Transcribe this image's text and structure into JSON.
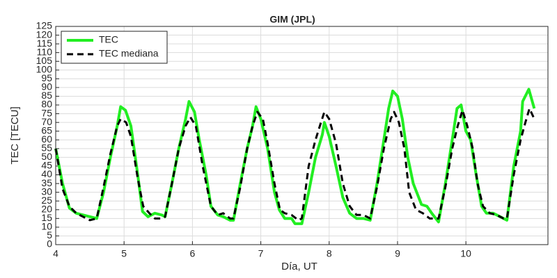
{
  "chart_data": {
    "type": "line",
    "title": "GIM (JPL)",
    "xlabel": "Día, UT",
    "ylabel": "TEC [TECU]",
    "xlim": [
      4,
      11.2
    ],
    "xticks": [
      4,
      5,
      6,
      7,
      8,
      9,
      10
    ],
    "ylim": [
      0,
      125
    ],
    "yticks": [
      0,
      5,
      10,
      15,
      20,
      25,
      30,
      35,
      40,
      45,
      50,
      55,
      60,
      65,
      70,
      75,
      80,
      85,
      90,
      95,
      100,
      105,
      110,
      115,
      120,
      125
    ],
    "grid": true,
    "legend": "upper left",
    "series": [
      {
        "name": "TEC",
        "color": "#22ee22",
        "style": "solid",
        "x": [
          4.0,
          4.1,
          4.2,
          4.3,
          4.4,
          4.5,
          4.6,
          4.7,
          4.8,
          4.9,
          4.95,
          5.02,
          5.1,
          5.2,
          5.27,
          5.35,
          5.45,
          5.55,
          5.6,
          5.7,
          5.8,
          5.9,
          5.95,
          6.03,
          6.1,
          6.2,
          6.27,
          6.37,
          6.45,
          6.55,
          6.6,
          6.7,
          6.8,
          6.88,
          6.93,
          7.0,
          7.1,
          7.2,
          7.27,
          7.35,
          7.45,
          7.5,
          7.6,
          7.7,
          7.8,
          7.9,
          7.93,
          8.0,
          8.1,
          8.2,
          8.3,
          8.4,
          8.5,
          8.6,
          8.7,
          8.8,
          8.87,
          8.93,
          9.0,
          9.07,
          9.15,
          9.23,
          9.35,
          9.43,
          9.5,
          9.6,
          9.7,
          9.8,
          9.87,
          9.93,
          10.0,
          10.07,
          10.15,
          10.23,
          10.3,
          10.4,
          10.5,
          10.6,
          10.7,
          10.8,
          10.83,
          10.92,
          11.0
        ],
        "values": [
          55,
          35,
          21,
          18,
          17,
          16,
          15,
          30,
          50,
          68,
          79,
          77,
          68,
          40,
          19,
          16,
          18,
          17,
          16,
          35,
          55,
          72,
          82,
          76,
          60,
          40,
          22,
          17,
          16,
          14,
          14,
          35,
          55,
          68,
          79,
          72,
          55,
          30,
          20,
          15,
          15,
          12,
          12,
          30,
          50,
          63,
          70,
          62,
          45,
          27,
          18,
          15,
          15,
          14,
          35,
          60,
          78,
          88,
          85,
          72,
          50,
          35,
          23,
          22,
          18,
          13,
          35,
          60,
          78,
          80,
          65,
          60,
          40,
          22,
          18,
          18,
          16,
          14,
          45,
          65,
          82,
          89,
          78
        ]
      },
      {
        "name": "TEC mediana",
        "color": "#000000",
        "style": "dashed",
        "x": [
          4.0,
          4.1,
          4.2,
          4.3,
          4.4,
          4.5,
          4.6,
          4.7,
          4.8,
          4.9,
          4.95,
          5.03,
          5.1,
          5.2,
          5.28,
          5.37,
          5.45,
          5.55,
          5.6,
          5.7,
          5.8,
          5.9,
          5.97,
          6.05,
          6.15,
          6.27,
          6.37,
          6.45,
          6.55,
          6.6,
          6.7,
          6.8,
          6.88,
          6.95,
          7.03,
          7.1,
          7.2,
          7.28,
          7.35,
          7.45,
          7.55,
          7.6,
          7.7,
          7.8,
          7.88,
          7.93,
          8.0,
          8.1,
          8.2,
          8.3,
          8.4,
          8.5,
          8.6,
          8.7,
          8.8,
          8.9,
          8.95,
          9.02,
          9.1,
          9.17,
          9.27,
          9.37,
          9.47,
          9.55,
          9.6,
          9.7,
          9.8,
          9.88,
          9.95,
          10.02,
          10.1,
          10.17,
          10.25,
          10.35,
          10.45,
          10.55,
          10.6,
          10.7,
          10.8,
          10.87,
          10.93,
          11.0
        ],
        "values": [
          55,
          32,
          22,
          18,
          16,
          14,
          15,
          33,
          52,
          68,
          72,
          70,
          62,
          38,
          22,
          18,
          15,
          15,
          16,
          35,
          55,
          68,
          73,
          68,
          45,
          22,
          17,
          18,
          15,
          15,
          33,
          55,
          68,
          76,
          72,
          58,
          35,
          20,
          18,
          17,
          14,
          15,
          45,
          60,
          70,
          76,
          72,
          58,
          35,
          22,
          17,
          17,
          15,
          33,
          55,
          72,
          76,
          70,
          55,
          30,
          20,
          18,
          15,
          15,
          15,
          33,
          55,
          68,
          77,
          68,
          55,
          35,
          22,
          18,
          17,
          15,
          15,
          40,
          60,
          70,
          78,
          72
        ]
      }
    ]
  }
}
